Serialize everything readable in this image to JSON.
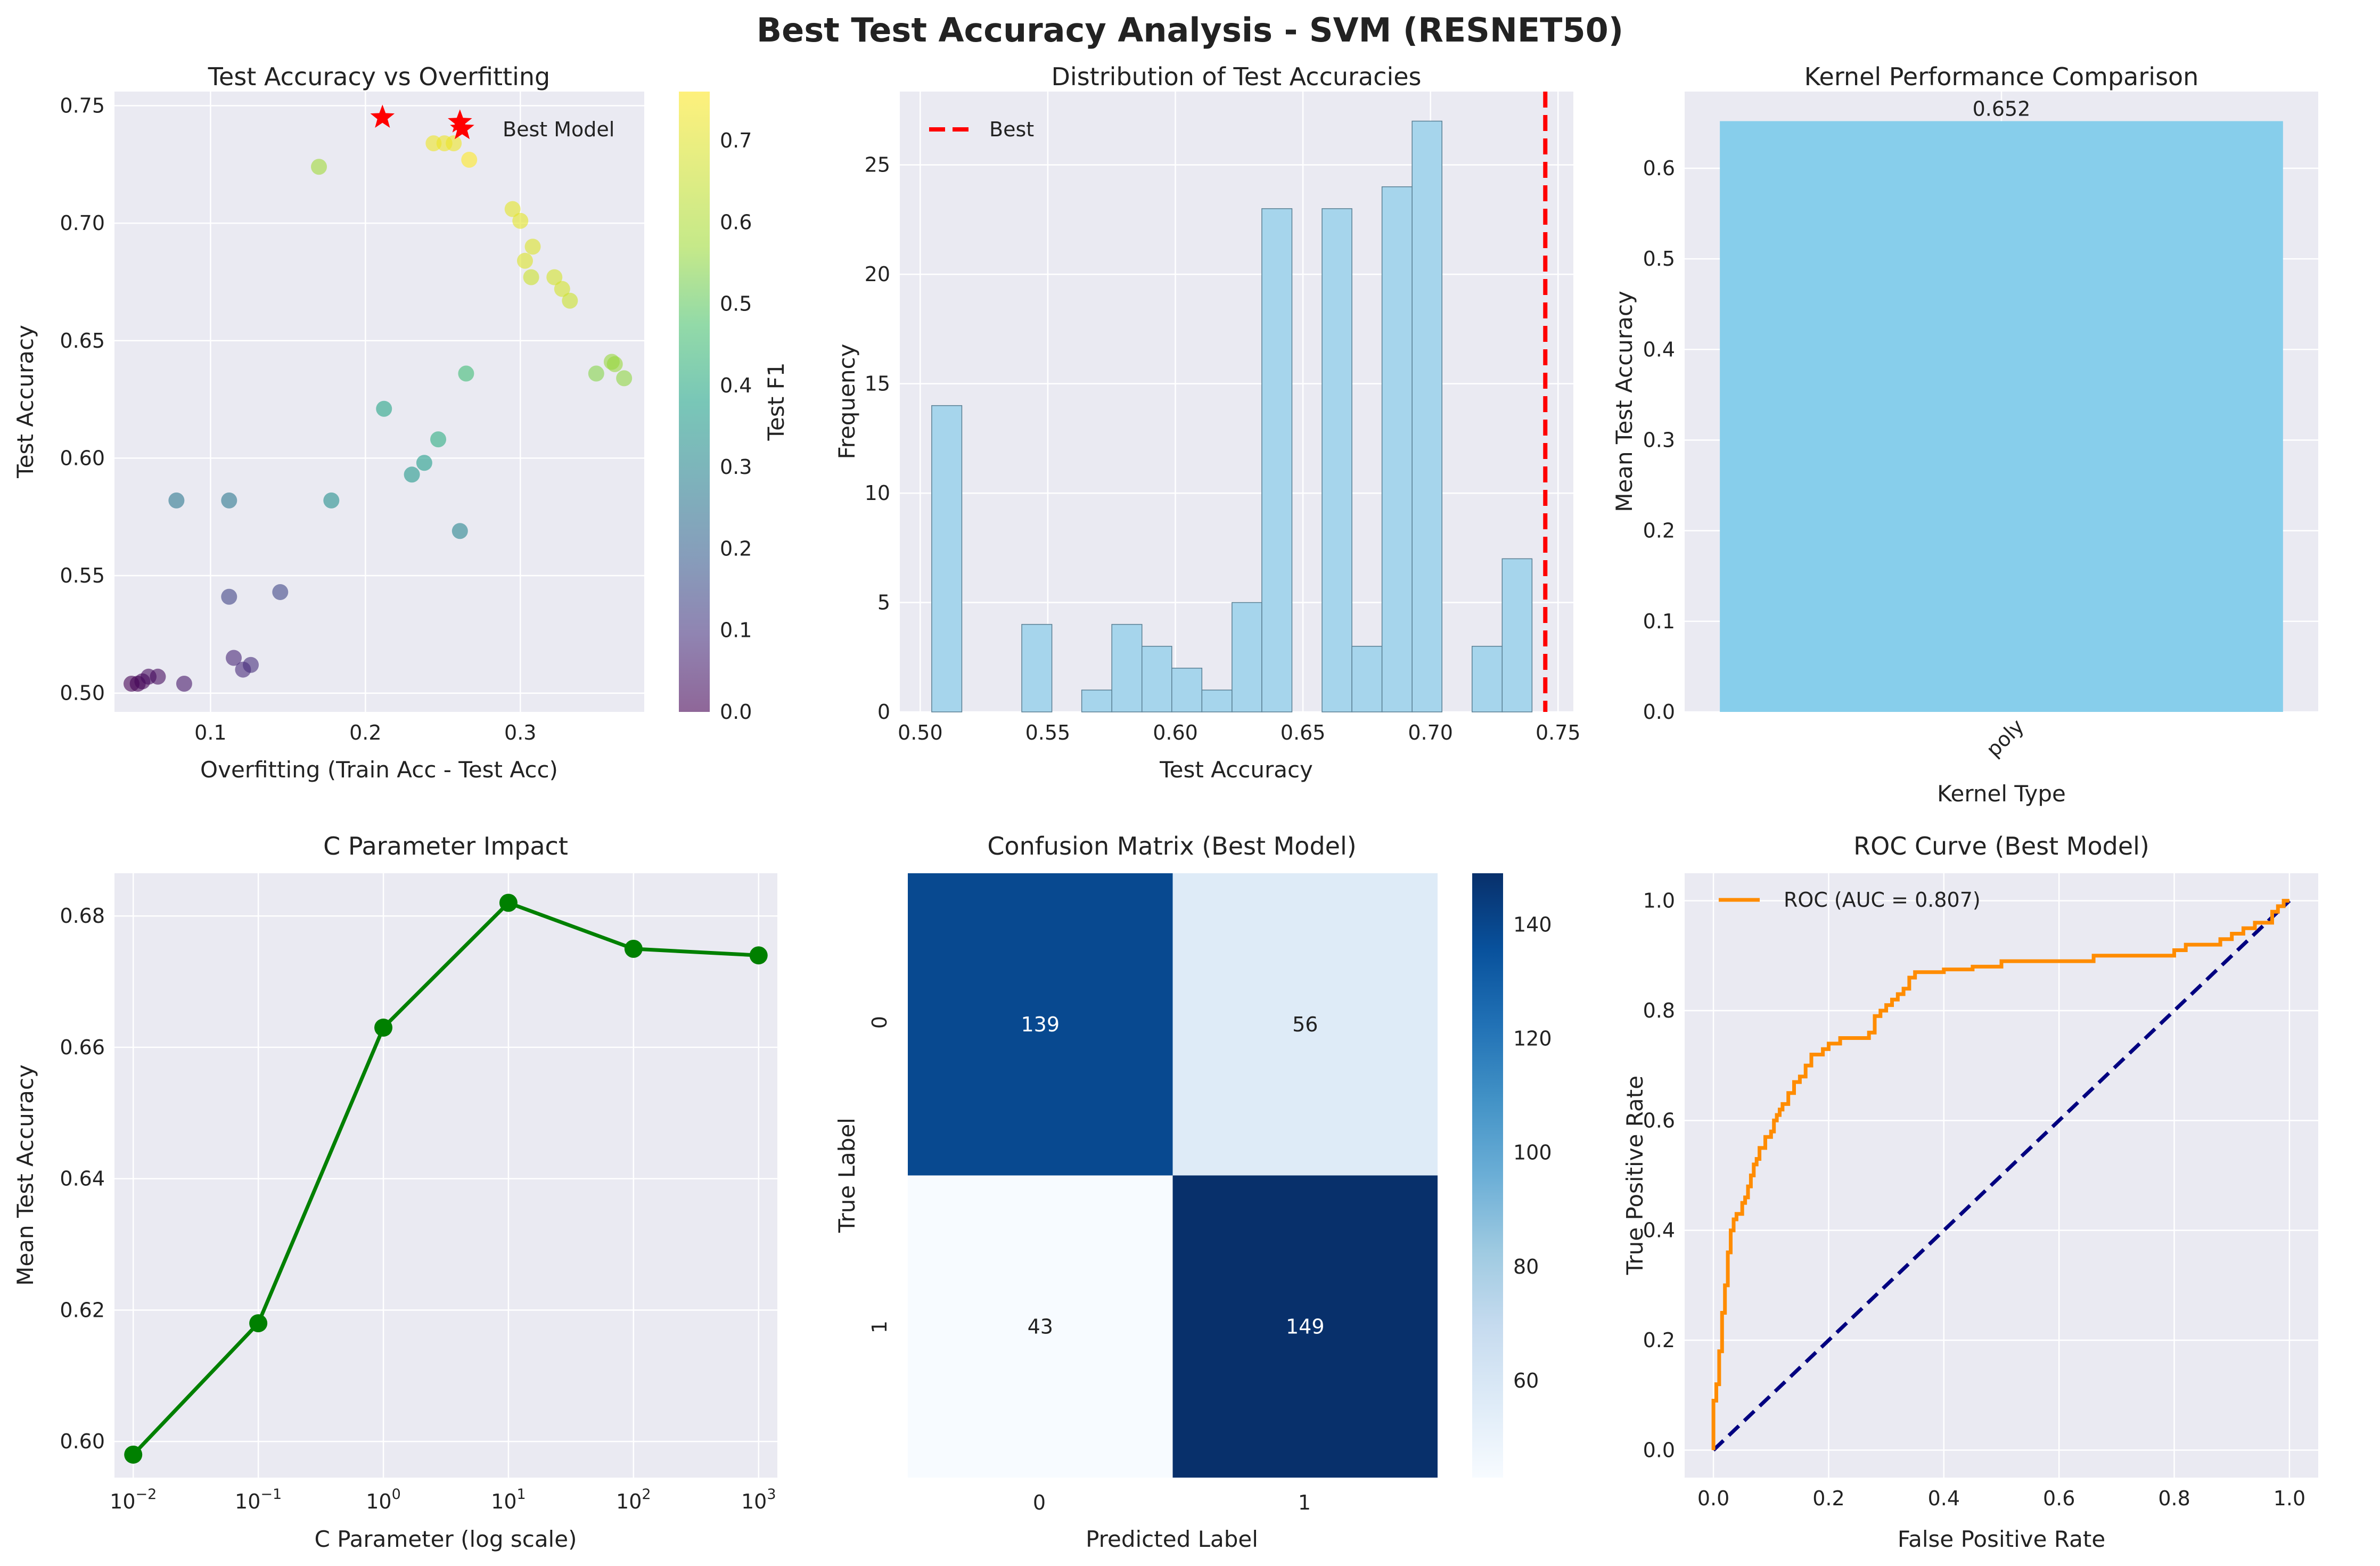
{
  "suptitle": "Best Test Accuracy Analysis - SVM (RESNET50)",
  "colors": {
    "panel_bg": "#EAEAF2",
    "grid": "#ffffff",
    "best": "#FF0000",
    "hist": "#A6D5EC",
    "bar": "#87CEEB",
    "line": "#008000",
    "roc": "#FF8C00",
    "diag": "#000080"
  },
  "scatter": {
    "title": "Test Accuracy vs Overfitting",
    "xlabel": "Overfitting (Train Acc - Test Acc)",
    "ylabel": "Test Accuracy",
    "colorbar_label": "Test F1",
    "legend": "Best Model",
    "x_ticks": [
      "0.1",
      "0.2",
      "0.3"
    ],
    "y_ticks": [
      "0.50",
      "0.55",
      "0.60",
      "0.65",
      "0.70",
      "0.75"
    ],
    "cbar_ticks": [
      "0.0",
      "0.1",
      "0.2",
      "0.3",
      "0.4",
      "0.5",
      "0.6",
      "0.7"
    ]
  },
  "histogram": {
    "title": "Distribution of Test Accuracies",
    "xlabel": "Test Accuracy",
    "ylabel": "Frequency",
    "legend": "Best",
    "x_ticks": [
      "0.50",
      "0.55",
      "0.60",
      "0.65",
      "0.70",
      "0.75"
    ],
    "y_ticks": [
      "0",
      "5",
      "10",
      "15",
      "20",
      "25"
    ]
  },
  "kernel": {
    "title": "Kernel Performance Comparison",
    "xlabel": "Kernel Type",
    "ylabel": "Mean Test Accuracy",
    "bar_label": "0.652",
    "category": "poly",
    "y_ticks": [
      "0.0",
      "0.1",
      "0.2",
      "0.3",
      "0.4",
      "0.5",
      "0.6"
    ]
  },
  "cparam": {
    "title": "C Parameter Impact",
    "xlabel": "C Parameter (log scale)",
    "ylabel": "Mean Test Accuracy",
    "x_ticks": [
      "10",
      "10",
      "10",
      "10",
      "10",
      "10"
    ],
    "x_exps": [
      "−2",
      "−1",
      "0",
      "1",
      "2",
      "3"
    ],
    "y_ticks": [
      "0.60",
      "0.62",
      "0.64",
      "0.66",
      "0.68"
    ]
  },
  "confusion": {
    "title": "Confusion Matrix (Best Model)",
    "xlabel": "Predicted Label",
    "ylabel": "True Label",
    "x_ticks": [
      "0",
      "1"
    ],
    "y_ticks": [
      "0",
      "1"
    ],
    "cell_labels": [
      "139",
      "56",
      "43",
      "149"
    ],
    "cbar_ticks": [
      "60",
      "80",
      "100",
      "120",
      "140"
    ]
  },
  "roc": {
    "title": "ROC Curve (Best Model)",
    "xlabel": "False Positive Rate",
    "ylabel": "True Positive Rate",
    "legend": "ROC (AUC = 0.807)",
    "x_ticks": [
      "0.0",
      "0.2",
      "0.4",
      "0.6",
      "0.8",
      "1.0"
    ],
    "y_ticks": [
      "0.0",
      "0.2",
      "0.4",
      "0.6",
      "0.8",
      "1.0"
    ]
  },
  "chart_data": [
    {
      "type": "scatter",
      "xlim": [
        0.038,
        0.38
      ],
      "ylim": [
        0.492,
        0.756
      ],
      "clim": [
        0.0,
        0.76
      ],
      "points": [
        {
          "x": 0.049,
          "y": 0.504,
          "c": 0.0
        },
        {
          "x": 0.053,
          "y": 0.504,
          "c": 0.0
        },
        {
          "x": 0.056,
          "y": 0.505,
          "c": 0.01
        },
        {
          "x": 0.06,
          "y": 0.507,
          "c": 0.02
        },
        {
          "x": 0.066,
          "y": 0.507,
          "c": 0.02
        },
        {
          "x": 0.083,
          "y": 0.504,
          "c": 0.05
        },
        {
          "x": 0.115,
          "y": 0.515,
          "c": 0.08
        },
        {
          "x": 0.121,
          "y": 0.51,
          "c": 0.09
        },
        {
          "x": 0.126,
          "y": 0.512,
          "c": 0.1
        },
        {
          "x": 0.112,
          "y": 0.541,
          "c": 0.15
        },
        {
          "x": 0.145,
          "y": 0.543,
          "c": 0.16
        },
        {
          "x": 0.078,
          "y": 0.582,
          "c": 0.3
        },
        {
          "x": 0.112,
          "y": 0.582,
          "c": 0.3
        },
        {
          "x": 0.178,
          "y": 0.582,
          "c": 0.37
        },
        {
          "x": 0.212,
          "y": 0.621,
          "c": 0.44
        },
        {
          "x": 0.23,
          "y": 0.593,
          "c": 0.4
        },
        {
          "x": 0.238,
          "y": 0.598,
          "c": 0.42
        },
        {
          "x": 0.247,
          "y": 0.608,
          "c": 0.47
        },
        {
          "x": 0.261,
          "y": 0.569,
          "c": 0.34
        },
        {
          "x": 0.265,
          "y": 0.636,
          "c": 0.52
        },
        {
          "x": 0.17,
          "y": 0.724,
          "c": 0.65
        },
        {
          "x": 0.244,
          "y": 0.734,
          "c": 0.74
        },
        {
          "x": 0.251,
          "y": 0.734,
          "c": 0.74
        },
        {
          "x": 0.257,
          "y": 0.734,
          "c": 0.74
        },
        {
          "x": 0.267,
          "y": 0.727,
          "c": 0.76
        },
        {
          "x": 0.295,
          "y": 0.706,
          "c": 0.73
        },
        {
          "x": 0.3,
          "y": 0.701,
          "c": 0.73
        },
        {
          "x": 0.303,
          "y": 0.684,
          "c": 0.72
        },
        {
          "x": 0.308,
          "y": 0.69,
          "c": 0.72
        },
        {
          "x": 0.307,
          "y": 0.677,
          "c": 0.7
        },
        {
          "x": 0.322,
          "y": 0.677,
          "c": 0.71
        },
        {
          "x": 0.327,
          "y": 0.672,
          "c": 0.71
        },
        {
          "x": 0.332,
          "y": 0.667,
          "c": 0.7
        },
        {
          "x": 0.349,
          "y": 0.636,
          "c": 0.62
        },
        {
          "x": 0.359,
          "y": 0.641,
          "c": 0.64
        },
        {
          "x": 0.361,
          "y": 0.64,
          "c": 0.64
        },
        {
          "x": 0.367,
          "y": 0.634,
          "c": 0.63
        }
      ],
      "best": [
        {
          "x": 0.211,
          "y": 0.745
        },
        {
          "x": 0.261,
          "y": 0.743
        }
      ]
    },
    {
      "type": "bar",
      "xlim": [
        0.492,
        0.756
      ],
      "ylim": [
        0,
        28.35
      ],
      "best_x": 0.745,
      "bins": [
        {
          "start": 0.5045,
          "end": 0.5163,
          "count": 14
        },
        {
          "start": 0.5398,
          "end": 0.5516,
          "count": 4
        },
        {
          "start": 0.5633,
          "end": 0.5751,
          "count": 1
        },
        {
          "start": 0.5751,
          "end": 0.5869,
          "count": 4
        },
        {
          "start": 0.5869,
          "end": 0.5986,
          "count": 3
        },
        {
          "start": 0.5986,
          "end": 0.6104,
          "count": 2
        },
        {
          "start": 0.6104,
          "end": 0.6222,
          "count": 1
        },
        {
          "start": 0.6222,
          "end": 0.6339,
          "count": 5
        },
        {
          "start": 0.6339,
          "end": 0.6457,
          "count": 23
        },
        {
          "start": 0.6575,
          "end": 0.6692,
          "count": 23
        },
        {
          "start": 0.6692,
          "end": 0.681,
          "count": 3
        },
        {
          "start": 0.681,
          "end": 0.6928,
          "count": 24
        },
        {
          "start": 0.6928,
          "end": 0.7045,
          "count": 27
        },
        {
          "start": 0.7163,
          "end": 0.7281,
          "count": 3
        },
        {
          "start": 0.7281,
          "end": 0.7398,
          "count": 7
        }
      ]
    },
    {
      "type": "bar",
      "categories": [
        "poly"
      ],
      "values": [
        0.652
      ],
      "ylim": [
        0,
        0.6846
      ]
    },
    {
      "type": "line",
      "x": [
        0.01,
        0.1,
        1,
        10,
        100,
        1000
      ],
      "values": [
        0.598,
        0.618,
        0.663,
        0.682,
        0.675,
        0.674
      ],
      "xscale": "log",
      "xlim": [
        0.00708,
        1413
      ],
      "ylim": [
        0.5945,
        0.6865
      ]
    },
    {
      "type": "heatmap",
      "rows": [
        "0",
        "1"
      ],
      "cols": [
        "0",
        "1"
      ],
      "values": [
        [
          139,
          56
        ],
        [
          43,
          149
        ]
      ],
      "clim": [
        43,
        149
      ]
    },
    {
      "type": "line",
      "xlim": [
        -0.05,
        1.05
      ],
      "ylim": [
        -0.05,
        1.05
      ],
      "roc": [
        [
          0.0,
          0.0
        ],
        [
          0.0,
          0.06
        ],
        [
          0.005,
          0.09
        ],
        [
          0.005,
          0.12
        ],
        [
          0.01,
          0.12
        ],
        [
          0.01,
          0.16
        ],
        [
          0.015,
          0.18
        ],
        [
          0.015,
          0.22
        ],
        [
          0.02,
          0.25
        ],
        [
          0.02,
          0.28
        ],
        [
          0.025,
          0.3
        ],
        [
          0.025,
          0.33
        ],
        [
          0.03,
          0.36
        ],
        [
          0.03,
          0.38
        ],
        [
          0.035,
          0.4
        ],
        [
          0.04,
          0.42
        ],
        [
          0.05,
          0.43
        ],
        [
          0.055,
          0.45
        ],
        [
          0.06,
          0.46
        ],
        [
          0.065,
          0.48
        ],
        [
          0.07,
          0.5
        ],
        [
          0.075,
          0.52
        ],
        [
          0.08,
          0.53
        ],
        [
          0.09,
          0.55
        ],
        [
          0.1,
          0.57
        ],
        [
          0.105,
          0.58
        ],
        [
          0.11,
          0.6
        ],
        [
          0.115,
          0.61
        ],
        [
          0.12,
          0.62
        ],
        [
          0.13,
          0.63
        ],
        [
          0.14,
          0.65
        ],
        [
          0.15,
          0.67
        ],
        [
          0.16,
          0.68
        ],
        [
          0.17,
          0.7
        ],
        [
          0.18,
          0.72
        ],
        [
          0.19,
          0.72
        ],
        [
          0.2,
          0.73
        ],
        [
          0.21,
          0.74
        ],
        [
          0.22,
          0.74
        ],
        [
          0.23,
          0.75
        ],
        [
          0.25,
          0.75
        ],
        [
          0.27,
          0.75
        ],
        [
          0.28,
          0.76
        ],
        [
          0.29,
          0.79
        ],
        [
          0.3,
          0.8
        ],
        [
          0.31,
          0.81
        ],
        [
          0.32,
          0.82
        ],
        [
          0.33,
          0.83
        ],
        [
          0.34,
          0.84
        ],
        [
          0.35,
          0.86
        ],
        [
          0.37,
          0.87
        ],
        [
          0.4,
          0.87
        ],
        [
          0.45,
          0.875
        ],
        [
          0.5,
          0.88
        ],
        [
          0.55,
          0.89
        ],
        [
          0.62,
          0.89
        ],
        [
          0.66,
          0.89
        ],
        [
          0.7,
          0.9
        ],
        [
          0.75,
          0.9
        ],
        [
          0.8,
          0.9
        ],
        [
          0.82,
          0.91
        ],
        [
          0.85,
          0.92
        ],
        [
          0.88,
          0.92
        ],
        [
          0.9,
          0.93
        ],
        [
          0.92,
          0.94
        ],
        [
          0.94,
          0.95
        ],
        [
          0.95,
          0.96
        ],
        [
          0.97,
          0.96
        ],
        [
          0.98,
          0.98
        ],
        [
          0.99,
          0.99
        ],
        [
          1.0,
          1.0
        ]
      ],
      "diagonal": [
        [
          0,
          0
        ],
        [
          1,
          1
        ]
      ]
    }
  ]
}
